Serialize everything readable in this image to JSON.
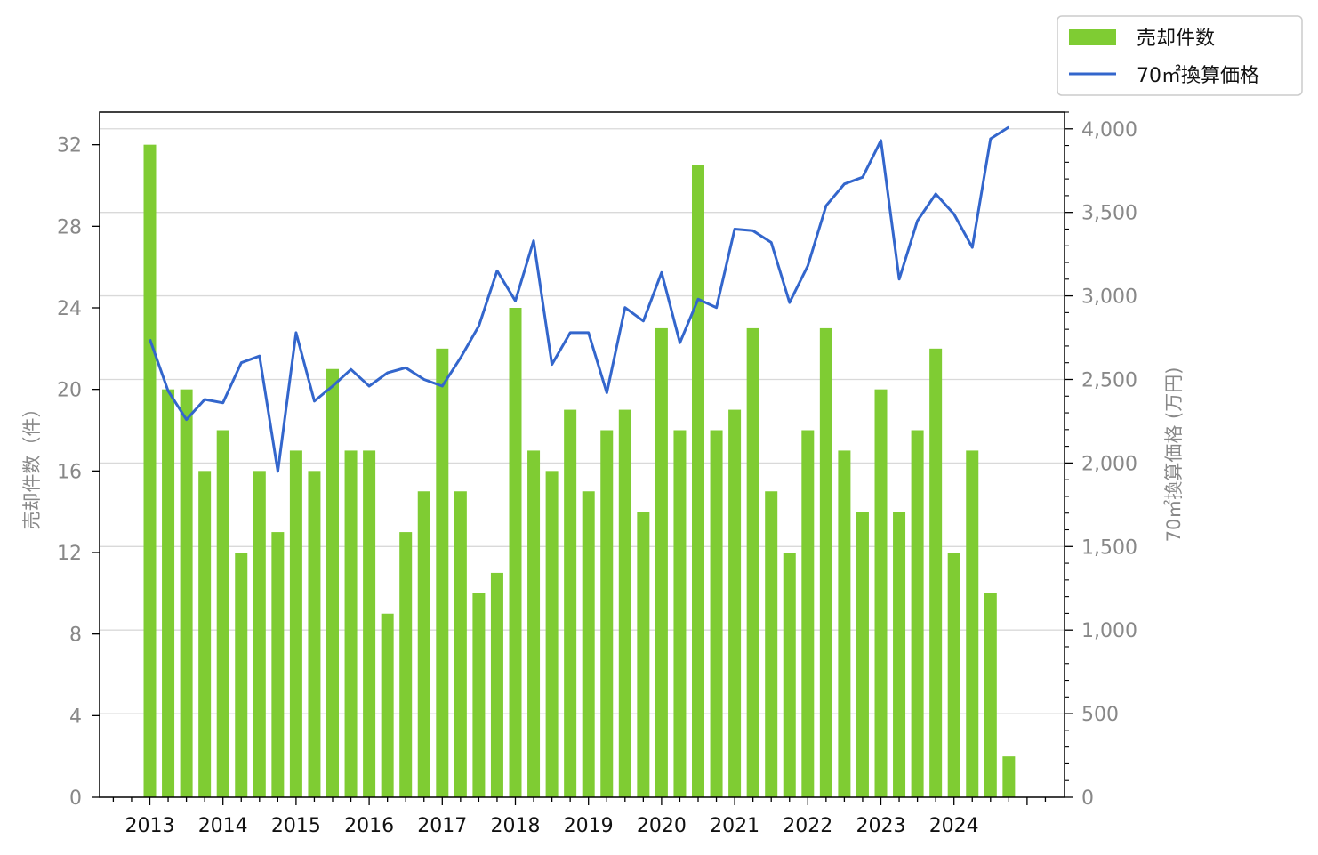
{
  "colors": {
    "bar": "#7fcc33",
    "line": "#3366cc",
    "grid": "#d9d9d9",
    "tick_text": "#888888"
  },
  "chart_data": {
    "type": "bar+line",
    "title": "",
    "legend": {
      "placement": "top-right, outside plot",
      "entries": [
        "売却件数",
        "70㎡換算価格"
      ]
    },
    "x": {
      "label": "",
      "tick_labels": [
        "2013",
        "2014",
        "2015",
        "2016",
        "2017",
        "2018",
        "2019",
        "2020",
        "2021",
        "2022",
        "2023",
        "2024"
      ],
      "quarters_per_year": 4,
      "start_year": 2013
    },
    "y_left": {
      "label": "売却件数（件）",
      "ylim": [
        0,
        33.6
      ],
      "ticks": [
        "0",
        "4",
        "8",
        "12",
        "16",
        "20",
        "24",
        "28",
        "32"
      ]
    },
    "y_right": {
      "label": "70㎡換算価格 (万円)",
      "ylim": [
        0,
        4100
      ],
      "ticks": [
        "0",
        "500",
        "1,000",
        "1,500",
        "2,000",
        "2,500",
        "3,000",
        "3,500",
        "4,000"
      ]
    },
    "grid": true,
    "series": [
      {
        "name": "売却件数",
        "type": "bar",
        "axis": "left",
        "values": [
          32,
          20,
          20,
          16,
          18,
          12,
          16,
          13,
          17,
          16,
          21,
          17,
          17,
          9,
          13,
          15,
          22,
          15,
          10,
          11,
          24,
          17,
          16,
          19,
          15,
          18,
          19,
          14,
          23,
          18,
          31,
          18,
          19,
          23,
          15,
          12,
          18,
          23,
          17,
          14,
          20,
          14,
          18,
          22,
          12,
          17,
          10,
          2
        ]
      },
      {
        "name": "70㎡換算価格",
        "type": "line",
        "axis": "right",
        "values": [
          2740,
          2430,
          2260,
          2380,
          2360,
          2600,
          2640,
          1950,
          2780,
          2370,
          2460,
          2560,
          2460,
          2540,
          2570,
          2500,
          2460,
          2630,
          2820,
          3150,
          2970,
          3330,
          2590,
          2780,
          2780,
          2420,
          2930,
          2850,
          3140,
          2720,
          2980,
          2930,
          3400,
          3390,
          3320,
          2960,
          3180,
          3540,
          3670,
          3710,
          3930,
          3100,
          3450,
          3610,
          3490,
          3290,
          3940,
          4010
        ]
      }
    ]
  }
}
